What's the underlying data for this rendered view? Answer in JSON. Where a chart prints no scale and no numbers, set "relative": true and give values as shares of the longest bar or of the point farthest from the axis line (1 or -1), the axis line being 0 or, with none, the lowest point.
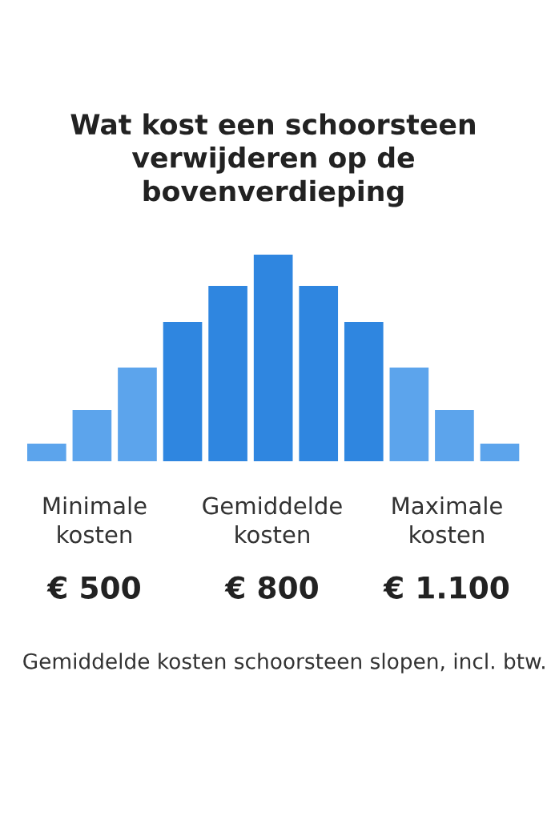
{
  "chart_data": {
    "type": "bar",
    "title": "Wat kost een schoorsteen verwijderen op de bovenverdieping",
    "categories": [
      null,
      null,
      null,
      null,
      null,
      null,
      null,
      null,
      null,
      null,
      null
    ],
    "values": [
      0.085,
      0.248,
      0.453,
      0.674,
      0.849,
      1,
      0.849,
      0.674,
      0.453,
      0.248,
      0.085
    ],
    "colors": [
      "#5ca4ec",
      "#5ca4ec",
      "#5ca4ec",
      "#2f86e0",
      "#2f86e0",
      "#2f86e0",
      "#2f86e0",
      "#2f86e0",
      "#5ca4ec",
      "#5ca4ec",
      "#5ca4ec"
    ],
    "relative": true,
    "annotations": [
      "Minimale kosten",
      "€ 500",
      "Gemiddelde kosten",
      "€ 800",
      "Maximale kosten",
      "€ 1.100",
      "Gemiddelde kosten schoorsteen slopen, incl. btw."
    ]
  }
}
